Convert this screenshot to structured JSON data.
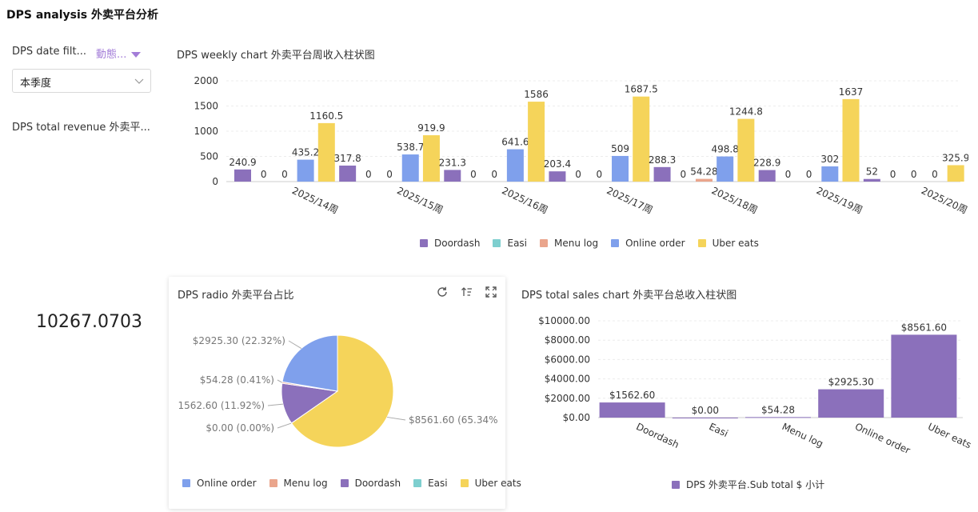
{
  "page": {
    "title": "DPS analysis 外卖平台分析"
  },
  "filter": {
    "label": "DPS date filt...",
    "action_label": "動態...",
    "selected": "本季度"
  },
  "revenue": {
    "label": "DPS total revenue 外卖平...",
    "value": "10267.0703"
  },
  "colors": {
    "Doordash": "#8b70bb",
    "Easi": "#7ecfcf",
    "Menu log": "#eaa58c",
    "Online order": "#7fa0ec",
    "Uber eats": "#f5d45a"
  },
  "icons": [
    "refresh-icon",
    "sort-icon",
    "fullscreen-icon",
    "chevron-down-icon",
    "triangle-down-icon"
  ],
  "chart_data": [
    {
      "type": "bar",
      "title": "DPS weekly chart 外卖平台周收入柱状图",
      "categories": [
        "2025/14周",
        "2025/15周",
        "2025/16周",
        "2025/17周",
        "2025/18周",
        "2025/19周",
        "2025/20周"
      ],
      "series": [
        {
          "name": "Doordash",
          "values": [
            240.9,
            317.8,
            231.3,
            203.4,
            288.3,
            228.9,
            52
          ]
        },
        {
          "name": "Easi",
          "values": [
            0,
            0,
            0,
            0,
            0,
            0,
            0
          ]
        },
        {
          "name": "Menu log",
          "values": [
            0,
            0,
            0,
            0,
            54.28,
            0,
            0
          ]
        },
        {
          "name": "Online order",
          "values": [
            435.2,
            538.7,
            641.6,
            509,
            498.8,
            302,
            0
          ]
        },
        {
          "name": "Uber eats",
          "values": [
            1160.5,
            919.9,
            1586,
            1687.5,
            1244.8,
            1637,
            325.9
          ]
        }
      ],
      "ylim": [
        0,
        2000
      ],
      "yticks": [
        "0",
        "500",
        "1000",
        "1500",
        "2000"
      ],
      "legend": "bottom",
      "grid": true
    },
    {
      "type": "pie",
      "title": "DPS radio 外卖平台占比",
      "slices": [
        {
          "name": "Online order",
          "value": 2925.3,
          "label": "$2925.30 (22.32%)"
        },
        {
          "name": "Menu log",
          "value": 54.28,
          "label": "$54.28 (0.41%)"
        },
        {
          "name": "Doordash",
          "value": 1562.6,
          "label": "1562.60 (11.92%)"
        },
        {
          "name": "Easi",
          "value": 0.0,
          "label": "$0.00 (0.00%)"
        },
        {
          "name": "Uber eats",
          "value": 8561.6,
          "label": "$8561.60 (65.34%"
        }
      ],
      "legend_order": [
        "Online order",
        "Menu log",
        "Doordash",
        "Easi",
        "Uber eats"
      ],
      "legend": "bottom"
    },
    {
      "type": "bar",
      "title": "DPS total sales chart 外卖平台总收入柱状图",
      "categories": [
        "Doordash",
        "Easi",
        "Menu log",
        "Online order",
        "Uber eats"
      ],
      "series": [
        {
          "name": "DPS 外卖平台.Sub total $ 小计",
          "values": [
            1562.6,
            0.0,
            54.28,
            2925.3,
            8561.6
          ]
        }
      ],
      "data_labels": [
        "$1562.60",
        "$0.00",
        "$54.28",
        "$2925.30",
        "$8561.60"
      ],
      "ylim": [
        0,
        10000
      ],
      "yticks": [
        "$0.00",
        "$2000.00",
        "$4000.00",
        "$6000.00",
        "$8000.00",
        "$10000.00"
      ],
      "legend": "bottom",
      "grid": true
    }
  ]
}
